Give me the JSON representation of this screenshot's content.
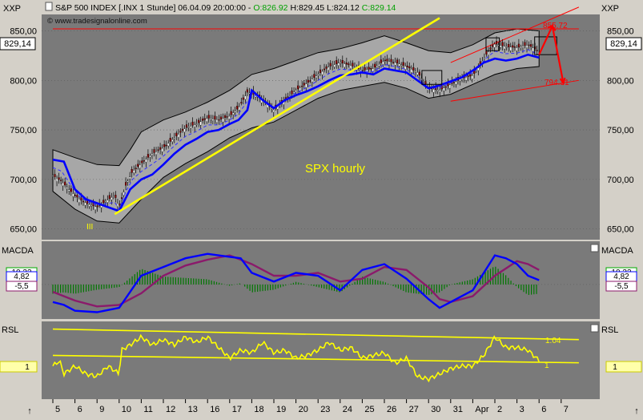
{
  "header": {
    "symbol_label": "XXP",
    "title": "S&P 500 INDEX [.INX  1 Stunde] 06.04.09 20:00:00 - ",
    "open": "O:826.92",
    "high": "H:829.45",
    "low": "L:824.12",
    "close": "C:829.14",
    "watermark": "© www.tradesignalonline.com",
    "annotation": "SPX hourly",
    "wave_label": "III",
    "target_label": "855.72",
    "support_label": "794.31"
  },
  "price_panel": {
    "current_label": "829,14",
    "y_ticks": [
      "850,00",
      "800,00",
      "750,00",
      "700,00",
      "650,00"
    ]
  },
  "macd_panel": {
    "label": "MACDA",
    "left_values": [
      "10,33",
      "4,82",
      "-5,5"
    ],
    "right_values": [
      "10,33",
      "4,82",
      "-5,5"
    ]
  },
  "rsl_panel": {
    "label": "RSL",
    "left_value": "1",
    "right_value": "1",
    "upper_line_label": "1.04",
    "lower_line_label": "1"
  },
  "x_axis": {
    "ticks": [
      "5",
      "6",
      "9",
      "10",
      "11",
      "12",
      "13",
      "16",
      "17",
      "18",
      "19",
      "20",
      "23",
      "24",
      "25",
      "26",
      "27",
      "30",
      "31",
      "Apr",
      "2",
      "3",
      "6",
      "7"
    ]
  },
  "colors": {
    "panel_bg": "#7a7a7a",
    "frame_bg": "#d4d0c8",
    "band_fill": "#a7a7a7",
    "mid_line": "#0000ff",
    "trend_yellow": "#ffff00",
    "channel_red": "#ff0000",
    "macd_line": "#0000ff",
    "signal_line": "#8b1a6b",
    "histogram": "#007700",
    "rsl_line": "#ffff00"
  },
  "chart_data": [
    {
      "type": "line",
      "name": "price",
      "title": "SPX hourly",
      "ylim": [
        640,
        865
      ],
      "ticks": [
        650,
        700,
        750,
        800,
        850
      ],
      "x_count": 24,
      "close_path": [
        [
          0,
          704
        ],
        [
          0.4,
          698
        ],
        [
          0.8,
          688
        ],
        [
          1.2,
          680
        ],
        [
          1.6,
          675
        ],
        [
          2,
          672
        ],
        [
          2.4,
          678
        ],
        [
          2.8,
          684
        ],
        [
          3,
          672
        ],
        [
          3.3,
          694
        ],
        [
          3.6,
          708
        ],
        [
          4,
          716
        ],
        [
          4.5,
          726
        ],
        [
          5,
          732
        ],
        [
          5.5,
          742
        ],
        [
          6,
          752
        ],
        [
          6.5,
          756
        ],
        [
          7,
          762
        ],
        [
          7.5,
          760
        ],
        [
          8,
          764
        ],
        [
          8.4,
          772
        ],
        [
          8.8,
          788
        ],
        [
          9.2,
          785
        ],
        [
          9.6,
          778
        ],
        [
          10,
          770
        ],
        [
          10.5,
          780
        ],
        [
          11,
          790
        ],
        [
          11.5,
          797
        ],
        [
          12,
          806
        ],
        [
          12.5,
          814
        ],
        [
          13,
          818
        ],
        [
          13.5,
          815
        ],
        [
          14,
          810
        ],
        [
          14.5,
          812
        ],
        [
          15,
          820
        ],
        [
          15.5,
          818
        ],
        [
          16,
          814
        ],
        [
          16.5,
          808
        ],
        [
          17,
          792
        ],
        [
          17.5,
          790
        ],
        [
          18,
          796
        ],
        [
          18.5,
          802
        ],
        [
          19,
          805
        ],
        [
          19.3,
          814
        ],
        [
          19.6,
          826
        ],
        [
          20,
          837
        ],
        [
          20.5,
          834
        ],
        [
          21,
          833
        ],
        [
          21.5,
          836
        ],
        [
          22,
          829
        ]
      ],
      "mid_band": [
        [
          0,
          720
        ],
        [
          0.5,
          718
        ],
        [
          1,
          690
        ],
        [
          1.5,
          680
        ],
        [
          2,
          676
        ],
        [
          3,
          668
        ],
        [
          3.5,
          690
        ],
        [
          4,
          700
        ],
        [
          4.5,
          705
        ],
        [
          5,
          715
        ],
        [
          5.5,
          726
        ],
        [
          6,
          735
        ],
        [
          6.5,
          741
        ],
        [
          7,
          748
        ],
        [
          7.5,
          750
        ],
        [
          8,
          756
        ],
        [
          8.4,
          760
        ],
        [
          8.8,
          770
        ],
        [
          9,
          790
        ],
        [
          9.5,
          780
        ],
        [
          10,
          772
        ],
        [
          10.5,
          780
        ],
        [
          11,
          785
        ],
        [
          11.5,
          789
        ],
        [
          12,
          794
        ],
        [
          12.5,
          800
        ],
        [
          13,
          805
        ],
        [
          13.5,
          806
        ],
        [
          14,
          808
        ],
        [
          14.5,
          806
        ],
        [
          15,
          812
        ],
        [
          15.5,
          810
        ],
        [
          16,
          808
        ],
        [
          16.5,
          800
        ],
        [
          17,
          792
        ],
        [
          17.5,
          795
        ],
        [
          18,
          799
        ],
        [
          18.5,
          803
        ],
        [
          19,
          810
        ],
        [
          19.5,
          818
        ],
        [
          20,
          822
        ],
        [
          20.5,
          820
        ],
        [
          21,
          822
        ],
        [
          21.5,
          826
        ],
        [
          22,
          823
        ]
      ],
      "band_upper": [
        [
          0,
          730
        ],
        [
          1,
          722
        ],
        [
          2,
          715
        ],
        [
          3,
          714
        ],
        [
          3.5,
          730
        ],
        [
          4,
          748
        ],
        [
          5,
          760
        ],
        [
          6,
          768
        ],
        [
          7,
          778
        ],
        [
          8,
          790
        ],
        [
          9,
          806
        ],
        [
          10,
          812
        ],
        [
          11,
          820
        ],
        [
          12,
          828
        ],
        [
          13,
          832
        ],
        [
          14,
          838
        ],
        [
          15,
          845
        ],
        [
          16,
          838
        ],
        [
          17,
          830
        ],
        [
          18,
          828
        ],
        [
          19,
          836
        ],
        [
          20,
          848
        ],
        [
          21,
          852
        ],
        [
          22,
          850
        ]
      ],
      "band_lower": [
        [
          0,
          688
        ],
        [
          1,
          670
        ],
        [
          2,
          658
        ],
        [
          3,
          656
        ],
        [
          3.5,
          668
        ],
        [
          4,
          680
        ],
        [
          5,
          702
        ],
        [
          6,
          716
        ],
        [
          7,
          728
        ],
        [
          8,
          742
        ],
        [
          9,
          752
        ],
        [
          10,
          758
        ],
        [
          11,
          770
        ],
        [
          12,
          782
        ],
        [
          13,
          790
        ],
        [
          14,
          794
        ],
        [
          15,
          798
        ],
        [
          16,
          792
        ],
        [
          17,
          782
        ],
        [
          18,
          786
        ],
        [
          19,
          796
        ],
        [
          20,
          806
        ],
        [
          21,
          812
        ],
        [
          22,
          814
        ]
      ],
      "trend_line": [
        [
          2.8,
          665
        ],
        [
          17.5,
          863
        ]
      ],
      "channel_upper": [
        [
          18,
          818
        ],
        [
          23.8,
          874
        ]
      ],
      "channel_lower": [
        [
          18,
          779
        ],
        [
          23.8,
          800
        ]
      ],
      "resistance_line": [
        [
          0,
          852
        ],
        [
          23.8,
          852
        ]
      ],
      "forecast": [
        [
          22,
          826
        ],
        [
          22.6,
          855
        ],
        [
          23.1,
          797
        ]
      ],
      "boxes": [
        [
          [
            16.7,
            796
          ],
          [
            17.6,
            810
          ]
        ],
        [
          [
            19.6,
            830
          ],
          [
            20.2,
            843
          ]
        ],
        [
          [
            21.8,
            826
          ],
          [
            22.8,
            844
          ]
        ]
      ]
    },
    {
      "type": "line",
      "name": "MACD",
      "ylim": [
        -22,
        28
      ],
      "macd": [
        [
          0,
          -12
        ],
        [
          0.5,
          -14
        ],
        [
          1,
          -18
        ],
        [
          2,
          -19
        ],
        [
          3,
          -16
        ],
        [
          4,
          6
        ],
        [
          5,
          12
        ],
        [
          6,
          18
        ],
        [
          7,
          21
        ],
        [
          8,
          19
        ],
        [
          8.5,
          18
        ],
        [
          9,
          8
        ],
        [
          10,
          2
        ],
        [
          11,
          8
        ],
        [
          12,
          6
        ],
        [
          13,
          -4
        ],
        [
          14,
          10
        ],
        [
          15,
          14
        ],
        [
          16,
          4
        ],
        [
          17,
          -10
        ],
        [
          17.5,
          -16
        ],
        [
          18,
          -12
        ],
        [
          19,
          -4
        ],
        [
          20,
          20
        ],
        [
          20.5,
          18
        ],
        [
          21,
          14
        ],
        [
          21.5,
          6
        ],
        [
          22,
          3
        ]
      ],
      "signal": [
        [
          0,
          -5
        ],
        [
          1,
          -11
        ],
        [
          2,
          -15
        ],
        [
          3,
          -14
        ],
        [
          4,
          -6
        ],
        [
          5,
          6
        ],
        [
          6,
          13
        ],
        [
          7,
          17
        ],
        [
          8,
          20
        ],
        [
          9,
          14
        ],
        [
          10,
          6
        ],
        [
          11,
          6
        ],
        [
          12,
          8
        ],
        [
          13,
          2
        ],
        [
          14,
          4
        ],
        [
          15,
          12
        ],
        [
          16,
          10
        ],
        [
          17,
          -2
        ],
        [
          17.5,
          -10
        ],
        [
          18,
          -12
        ],
        [
          19,
          -8
        ],
        [
          20,
          6
        ],
        [
          21,
          16
        ],
        [
          21.5,
          14
        ],
        [
          22,
          10
        ]
      ],
      "histogram_rows": 45
    },
    {
      "type": "line",
      "name": "RSL",
      "ylim": [
        0.93,
        1.07
      ],
      "values": [
        [
          0,
          0.99
        ],
        [
          0.3,
          1.0
        ],
        [
          0.5,
          0.975
        ],
        [
          1,
          0.99
        ],
        [
          1.5,
          0.975
        ],
        [
          2,
          0.97
        ],
        [
          2.5,
          0.99
        ],
        [
          3,
          0.975
        ],
        [
          3.1,
          1.02
        ],
        [
          3.5,
          1.03
        ],
        [
          4,
          1.045
        ],
        [
          4.5,
          1.03
        ],
        [
          5,
          1.04
        ],
        [
          5.5,
          1.03
        ],
        [
          6,
          1.045
        ],
        [
          6.5,
          1.035
        ],
        [
          7,
          1.045
        ],
        [
          7.5,
          1.025
        ],
        [
          8,
          1.005
        ],
        [
          8.5,
          1.02
        ],
        [
          9,
          1.015
        ],
        [
          9.5,
          1.035
        ],
        [
          10,
          1.015
        ],
        [
          10.5,
          1.02
        ],
        [
          11,
          1.005
        ],
        [
          11.5,
          1.01
        ],
        [
          12,
          1.02
        ],
        [
          12.5,
          1.035
        ],
        [
          13,
          1.02
        ],
        [
          13.5,
          1.025
        ],
        [
          14,
          1.005
        ],
        [
          14.5,
          1.01
        ],
        [
          15,
          1.015
        ],
        [
          15.5,
          0.995
        ],
        [
          16,
          1.005
        ],
        [
          16.5,
          0.97
        ],
        [
          17,
          0.965
        ],
        [
          17.5,
          0.975
        ],
        [
          18,
          0.985
        ],
        [
          18.5,
          0.99
        ],
        [
          19,
          0.99
        ],
        [
          19.5,
          1.01
        ],
        [
          20,
          1.045
        ],
        [
          20.5,
          1.025
        ],
        [
          21,
          1.025
        ],
        [
          21.5,
          1.02
        ],
        [
          22,
          1.0
        ]
      ],
      "upper_line": [
        [
          0,
          1.06
        ],
        [
          23.8,
          1.04
        ]
      ],
      "lower_line": [
        [
          0,
          1.01
        ],
        [
          23.8,
          0.996
        ]
      ]
    }
  ]
}
